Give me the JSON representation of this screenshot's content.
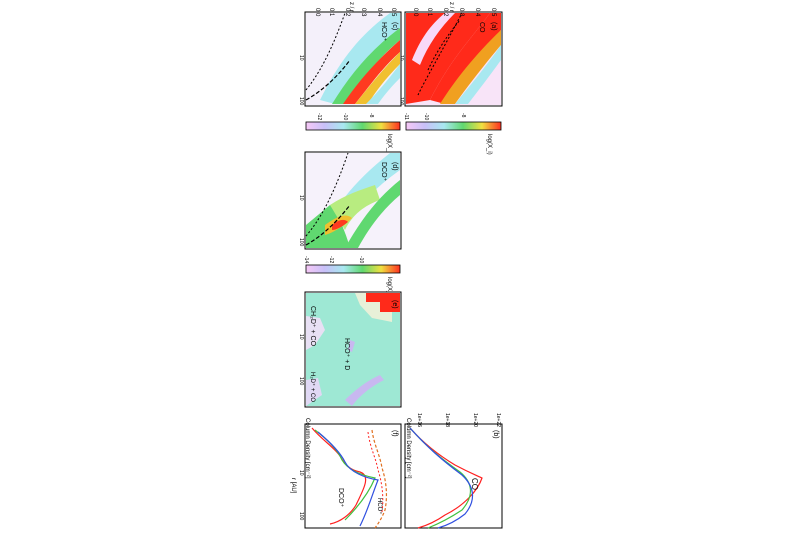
{
  "panels": {
    "a": {
      "tag": "(a)",
      "species": "CO",
      "cbar_label": "log(X_i)",
      "cbar_ticks": [
        "-11",
        "-10",
        "-9",
        "-8",
        "-7",
        "-6"
      ],
      "x_ticks": [
        "1",
        "10",
        "100"
      ],
      "y_ticks": [
        "0.0",
        "0.1",
        "0.2",
        "0.3",
        "0.4",
        "0.5"
      ]
    },
    "b": {
      "tag": "(b)",
      "species": "CO",
      "ylabel": "Column Density [cm⁻²]",
      "y_ticks": [
        "1e+16",
        "1e+17",
        "1e+18",
        "1e+19",
        "1e+20",
        "1e+21",
        "1e+22"
      ],
      "x_ticks": [
        "1",
        "10",
        "100"
      ]
    },
    "c": {
      "tag": "(c)",
      "species": "HCO⁺",
      "cbar_label": "log(X_i)",
      "cbar_ticks": [
        "-14",
        "-12",
        "-10",
        "-8"
      ],
      "x_ticks": [
        "1",
        "10",
        "100"
      ],
      "y_ticks": [
        "0.0",
        "0.1",
        "0.2",
        "0.3",
        "0.4",
        "0.5"
      ]
    },
    "d": {
      "tag": "(d)",
      "species": "DCO⁺",
      "cbar_label": "log(X_i)",
      "cbar_ticks": [
        "-14",
        "-12",
        "-10"
      ],
      "x_ticks": [
        "1",
        "10",
        "100"
      ],
      "y_ticks": [
        "0.0",
        "0.1",
        "0.2",
        "0.3",
        "0.4",
        "0.5"
      ]
    },
    "e": {
      "tag": "(e)",
      "region_labels": [
        "HCO⁺ + D",
        "CH₂D⁺ + CO",
        "H₂D⁺ + CO"
      ],
      "x_ticks": [
        "1",
        "10",
        "100"
      ]
    },
    "f": {
      "tag": "(f)",
      "ylabel": "Column Density [cm⁻²]",
      "xlabel": "r [AU]",
      "series_labels": [
        "DCO⁺",
        "HCO⁺"
      ],
      "y_ticks": [
        "1e+10",
        "1e+11",
        "1e+12",
        "1e+13",
        "1e+14",
        "1e+15"
      ],
      "x_ticks": [
        "1",
        "10",
        "100"
      ]
    }
  },
  "axis_letter": "z / r",
  "colors": {
    "red": "#ff2020",
    "green": "#40c040",
    "blue": "#3050e0",
    "orange": "#e07020"
  }
}
